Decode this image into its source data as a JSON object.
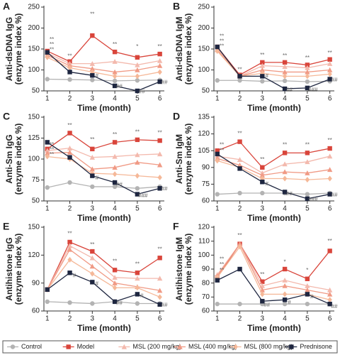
{
  "legend": [
    {
      "name": "Control",
      "color": "#b3b3b3",
      "marker": "circle"
    },
    {
      "name": "Model",
      "color": "#d9453b",
      "marker": "square"
    },
    {
      "name": "MSL (200 mg/kg)",
      "color": "#f3b9ad",
      "marker": "triangle"
    },
    {
      "name": "MSL (400 mg/kg)",
      "color": "#f09a85",
      "marker": "triangle"
    },
    {
      "name": "MSL (800 mg/kg)",
      "color": "#f5b898",
      "marker": "diamond"
    },
    {
      "name": "Prednisone",
      "color": "#1e2640",
      "marker": "square"
    }
  ],
  "chart_data": [
    {
      "type": "line",
      "panel": "A",
      "ylabel": [
        "Anti-dsDNA IgG",
        "(enzyme index %)"
      ],
      "xlabel": "Time (month)",
      "x": [
        1,
        2,
        3,
        4,
        5,
        6
      ],
      "xlim": [
        0.85,
        6.2
      ],
      "xticks": [
        1,
        2,
        3,
        4,
        5,
        6
      ],
      "ylim": [
        50,
        250
      ],
      "yticks": [
        50,
        100,
        150,
        200,
        250
      ],
      "series": [
        {
          "values": [
            78,
            77,
            76,
            74,
            75,
            76
          ]
        },
        {
          "values": [
            145,
            120,
            182,
            143,
            130,
            138
          ]
        },
        {
          "values": [
            140,
            115,
            115,
            120,
            112,
            122
          ]
        },
        {
          "values": [
            135,
            110,
            103,
            95,
            100,
            110
          ]
        },
        {
          "values": [
            130,
            105,
            95,
            85,
            85,
            95
          ]
        },
        {
          "values": [
            142,
            95,
            87,
            62,
            50,
            72
          ]
        }
      ],
      "annotations": [
        {
          "x": 1.2,
          "y": 172,
          "text": "**"
        },
        {
          "x": 1.2,
          "y": 160,
          "text": "**"
        },
        {
          "x": 1.2,
          "y": 148,
          "text": "**"
        },
        {
          "x": 2,
          "y": 132,
          "text": "**"
        },
        {
          "x": 3,
          "y": 232,
          "text": "**"
        },
        {
          "x": 4,
          "y": 160,
          "text": "**"
        },
        {
          "x": 5,
          "y": 155,
          "text": "*"
        },
        {
          "x": 6,
          "y": 155,
          "text": "**"
        },
        {
          "x": 3.2,
          "y": 85,
          "text": "#"
        },
        {
          "x": 4.2,
          "y": 60,
          "text": "##"
        },
        {
          "x": 5.2,
          "y": 48,
          "text": "##"
        },
        {
          "x": 6.2,
          "y": 70,
          "text": "##"
        }
      ]
    },
    {
      "type": "line",
      "panel": "B",
      "ylabel": [
        "Anti-dsDNA IgM",
        "(enzyme index %)"
      ],
      "xlabel": "Time (month)",
      "x": [
        1,
        2,
        3,
        4,
        5,
        6
      ],
      "xlim": [
        0.85,
        6.2
      ],
      "xticks": [
        1,
        2,
        3,
        4,
        5,
        6
      ],
      "ylim": [
        50,
        250
      ],
      "yticks": [
        50,
        100,
        150,
        200,
        250
      ],
      "series": [
        {
          "values": [
            75,
            75,
            73,
            74,
            72,
            73
          ]
        },
        {
          "values": [
            155,
            88,
            118,
            118,
            112,
            125
          ]
        },
        {
          "values": [
            150,
            85,
            110,
            108,
            105,
            115
          ]
        },
        {
          "values": [
            148,
            85,
            100,
            95,
            95,
            100
          ]
        },
        {
          "values": [
            145,
            85,
            92,
            85,
            85,
            90
          ]
        },
        {
          "values": [
            155,
            85,
            85,
            55,
            57,
            78
          ]
        }
      ],
      "annotations": [
        {
          "x": 1.2,
          "y": 180,
          "text": "**"
        },
        {
          "x": 1.2,
          "y": 168,
          "text": "**"
        },
        {
          "x": 1.2,
          "y": 156,
          "text": "**"
        },
        {
          "x": 2,
          "y": 100,
          "text": "**"
        },
        {
          "x": 3,
          "y": 135,
          "text": "**"
        },
        {
          "x": 4,
          "y": 133,
          "text": "**"
        },
        {
          "x": 5,
          "y": 128,
          "text": "**"
        },
        {
          "x": 6,
          "y": 140,
          "text": "**"
        },
        {
          "x": 3.2,
          "y": 85,
          "text": "#"
        },
        {
          "x": 4.2,
          "y": 52,
          "text": "##"
        },
        {
          "x": 5.25,
          "y": 52,
          "text": "###"
        },
        {
          "x": 6.2,
          "y": 76,
          "text": "##"
        }
      ]
    },
    {
      "type": "line",
      "panel": "C",
      "ylabel": [
        "Anti-Sm IgG",
        "(enzyme index %)"
      ],
      "xlabel": "Time (month)",
      "x": [
        1,
        2,
        3,
        4,
        5,
        6
      ],
      "xlim": [
        0.85,
        6.2
      ],
      "xticks": [
        1,
        2,
        3,
        4,
        5,
        6
      ],
      "ylim": [
        50,
        150
      ],
      "yticks": [
        50,
        75,
        100,
        125,
        150
      ],
      "series": [
        {
          "values": [
            66,
            72,
            67,
            67,
            65,
            67
          ]
        },
        {
          "values": [
            112,
            131,
            112,
            120,
            123,
            122
          ]
        },
        {
          "values": [
            110,
            113,
            102,
            103,
            105,
            106
          ]
        },
        {
          "values": [
            107,
            108,
            88,
            90,
            96,
            93
          ]
        },
        {
          "values": [
            103,
            100,
            83,
            82,
            80,
            78
          ]
        },
        {
          "values": [
            120,
            102,
            80,
            72,
            58,
            65
          ]
        }
      ],
      "annotations": [
        {
          "x": 1.2,
          "y": 117,
          "text": "**"
        },
        {
          "x": 1.2,
          "y": 111,
          "text": "**"
        },
        {
          "x": 1.2,
          "y": 105,
          "text": "**"
        },
        {
          "x": 2,
          "y": 140,
          "text": "**"
        },
        {
          "x": 3,
          "y": 123,
          "text": "**"
        },
        {
          "x": 4,
          "y": 129,
          "text": "**"
        },
        {
          "x": 5,
          "y": 132,
          "text": "**"
        },
        {
          "x": 6,
          "y": 131,
          "text": "**"
        },
        {
          "x": 3.2,
          "y": 77,
          "text": "#"
        },
        {
          "x": 4.2,
          "y": 69,
          "text": "##"
        },
        {
          "x": 5.25,
          "y": 56,
          "text": "###"
        },
        {
          "x": 6.2,
          "y": 64,
          "text": "##"
        }
      ]
    },
    {
      "type": "line",
      "panel": "D",
      "ylabel": [
        "Anti-Sm IgM",
        "(enzyme index %)"
      ],
      "xlabel": "Time (month)",
      "x": [
        1,
        2,
        3,
        4,
        5,
        6
      ],
      "xlim": [
        0.85,
        6.2
      ],
      "xticks": [
        1,
        2,
        3,
        4,
        5,
        6
      ],
      "ylim": [
        60,
        135
      ],
      "yticks": [
        60,
        75,
        90,
        105,
        120,
        135
      ],
      "series": [
        {
          "values": [
            66,
            67,
            67,
            67,
            66,
            67
          ]
        },
        {
          "values": [
            105,
            113,
            90,
            103,
            103,
            107
          ]
        },
        {
          "values": [
            100,
            97,
            85,
            93,
            95,
            100
          ]
        },
        {
          "values": [
            98,
            92,
            83,
            86,
            85,
            88
          ]
        },
        {
          "values": [
            96,
            90,
            80,
            80,
            79,
            80
          ]
        },
        {
          "values": [
            102,
            89,
            77,
            68,
            62,
            66
          ]
        }
      ],
      "annotations": [
        {
          "x": 1.2,
          "y": 110,
          "text": "**"
        },
        {
          "x": 1.2,
          "y": 105,
          "text": "**"
        },
        {
          "x": 2,
          "y": 120,
          "text": "**"
        },
        {
          "x": 3,
          "y": 97,
          "text": "**"
        },
        {
          "x": 4,
          "y": 110,
          "text": "**"
        },
        {
          "x": 5,
          "y": 110,
          "text": "**"
        },
        {
          "x": 6,
          "y": 114,
          "text": "**"
        },
        {
          "x": 3.2,
          "y": 75,
          "text": "#"
        },
        {
          "x": 4.2,
          "y": 66,
          "text": "##"
        },
        {
          "x": 5.25,
          "y": 61,
          "text": "###"
        },
        {
          "x": 6.2,
          "y": 65,
          "text": "##"
        }
      ]
    },
    {
      "type": "line",
      "panel": "E",
      "ylabel": [
        "Antihistone IgG",
        "(enzyme index %)"
      ],
      "xlabel": "Time (month)",
      "x": [
        1,
        2,
        3,
        4,
        5,
        6
      ],
      "xlim": [
        0.85,
        6.2
      ],
      "xticks": [
        1,
        2,
        3,
        4,
        5,
        6
      ],
      "ylim": [
        60,
        150
      ],
      "yticks": [
        60,
        90,
        120,
        150
      ],
      "series": [
        {
          "values": [
            70,
            69,
            68,
            70,
            68,
            68
          ]
        },
        {
          "values": [
            83,
            134,
            124,
            104,
            101,
            117
          ]
        },
        {
          "values": [
            83,
            130,
            117,
            96,
            95,
            95
          ]
        },
        {
          "values": [
            83,
            126,
            108,
            90,
            86,
            82
          ]
        },
        {
          "values": [
            83,
            115,
            100,
            85,
            85,
            75
          ]
        },
        {
          "values": [
            83,
            101,
            91,
            70,
            78,
            67
          ]
        }
      ],
      "annotations": [
        {
          "x": 2,
          "y": 143,
          "text": "**"
        },
        {
          "x": 3,
          "y": 131,
          "text": "**"
        },
        {
          "x": 4,
          "y": 113,
          "text": "**"
        },
        {
          "x": 5,
          "y": 110,
          "text": "**"
        },
        {
          "x": 6,
          "y": 126,
          "text": "**"
        },
        {
          "x": 2.2,
          "y": 98,
          "text": "#"
        },
        {
          "x": 3.2,
          "y": 89,
          "text": "#"
        },
        {
          "x": 4.2,
          "y": 68,
          "text": "##"
        },
        {
          "x": 5.2,
          "y": 76,
          "text": "#"
        },
        {
          "x": 6.2,
          "y": 66,
          "text": "##"
        }
      ]
    },
    {
      "type": "line",
      "panel": "F",
      "ylabel": [
        "Antihistone IgM",
        "(enzyme index %)"
      ],
      "xlabel": "Time (month)",
      "x": [
        1,
        2,
        3,
        4,
        5,
        6
      ],
      "xlim": [
        0.85,
        6.2
      ],
      "xticks": [
        1,
        2,
        3,
        4,
        5,
        6
      ],
      "ylim": [
        60,
        120
      ],
      "yticks": [
        60,
        70,
        80,
        90,
        100,
        110,
        120
      ],
      "series": [
        {
          "values": [
            65,
            65,
            65,
            65,
            65,
            65
          ]
        },
        {
          "values": [
            84,
            108,
            81,
            90,
            83,
            103
          ]
        },
        {
          "values": [
            86,
            108,
            78,
            82,
            78,
            75
          ]
        },
        {
          "values": [
            85,
            108,
            75,
            78,
            75,
            72
          ]
        },
        {
          "values": [
            84,
            106,
            72,
            72,
            72,
            68
          ]
        },
        {
          "values": [
            82,
            90,
            67,
            68,
            72,
            65
          ]
        }
      ],
      "annotations": [
        {
          "x": 1.2,
          "y": 97,
          "text": "**"
        },
        {
          "x": 1.2,
          "y": 93,
          "text": "**"
        },
        {
          "x": 1.2,
          "y": 89,
          "text": "**"
        },
        {
          "x": 2,
          "y": 114,
          "text": "**"
        },
        {
          "x": 3,
          "y": 86,
          "text": "**"
        },
        {
          "x": 4,
          "y": 95,
          "text": "*"
        },
        {
          "x": 5,
          "y": 89,
          "text": "*"
        },
        {
          "x": 6,
          "y": 110,
          "text": "**"
        },
        {
          "x": 3.2,
          "y": 64,
          "text": "##"
        },
        {
          "x": 4.2,
          "y": 66,
          "text": "#"
        },
        {
          "x": 5.2,
          "y": 70,
          "text": "#"
        },
        {
          "x": 6.2,
          "y": 63,
          "text": "##"
        }
      ]
    }
  ]
}
